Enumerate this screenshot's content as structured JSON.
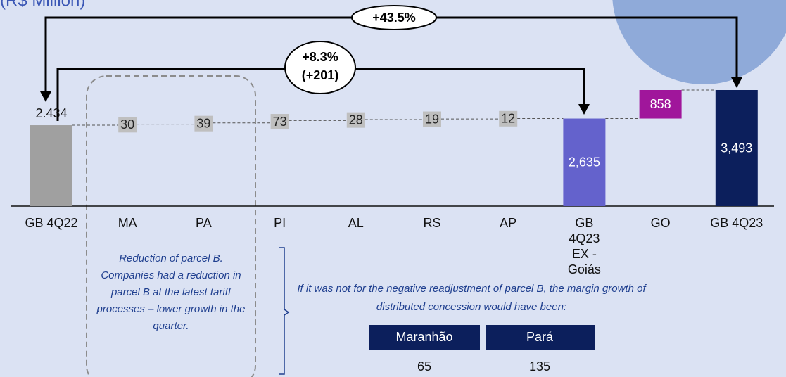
{
  "title": "(R$ Million)",
  "chart_data": {
    "type": "waterfall",
    "categories": [
      "GB 4Q22",
      "MA",
      "PA",
      "PI",
      "AL",
      "RS",
      "AP",
      "GB 4Q23 EX - Goiás",
      "GO",
      "GB 4Q23"
    ],
    "values": [
      2434,
      30,
      39,
      73,
      28,
      19,
      12,
      2635,
      858,
      3493
    ],
    "value_labels": [
      "2.434",
      "30",
      "39",
      "73",
      "28",
      "19",
      "12",
      "2,635",
      "858",
      "3,493"
    ],
    "kinds": [
      "total",
      "delta",
      "delta",
      "delta",
      "delta",
      "delta",
      "delta",
      "total",
      "delta",
      "total"
    ],
    "colors": [
      "#a0a0a0",
      "#bfbfbf",
      "#bfbfbf",
      "#bfbfbf",
      "#bfbfbf",
      "#bfbfbf",
      "#bfbfbf",
      "#6462cc",
      "#a0169b",
      "#0c1f5c"
    ],
    "label_inside": [
      false,
      true,
      true,
      true,
      true,
      true,
      true,
      true,
      true,
      true
    ]
  },
  "growth_total": "+43.5%",
  "growth_ex": [
    "+8.3%",
    "(+201)"
  ],
  "note_box": "Reduction of parcel B. Companies had a reduction in parcel B at the latest tariff processes – lower growth in the quarter.",
  "footnote": "If it was not for the negative readjustment of parcel B, the margin growth of distributed concession would have been:",
  "table": {
    "headers": [
      "Maranhão",
      "Pará"
    ],
    "values": [
      65,
      135
    ]
  }
}
